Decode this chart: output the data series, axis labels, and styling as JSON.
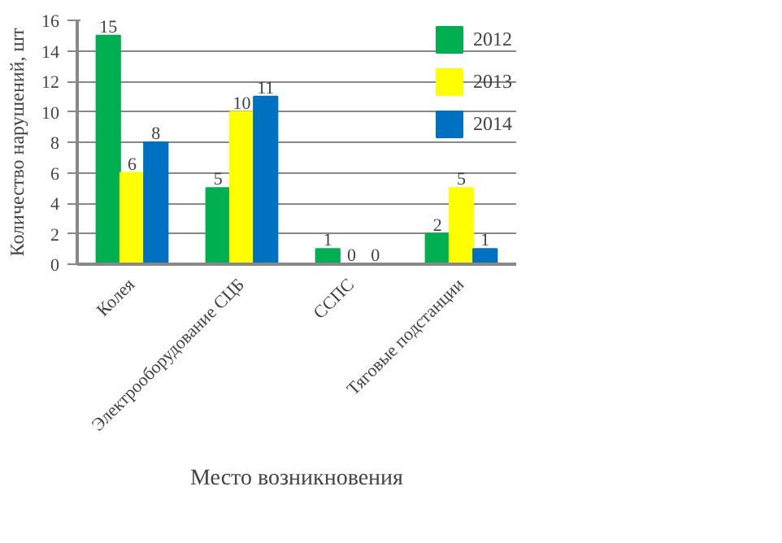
{
  "chart_data": {
    "type": "bar",
    "xlabel": "Место возникновения",
    "ylabel": "Количество нарушений, шт",
    "categories": [
      "Колея",
      "Электрооборудование СЦБ",
      "ССПС",
      "Тяговые подстанции"
    ],
    "series": [
      {
        "name": "2012",
        "color": "#00b050",
        "values": [
          15,
          5,
          1,
          2
        ]
      },
      {
        "name": "2013",
        "color": "#ffff00",
        "values": [
          6,
          10,
          0,
          5
        ]
      },
      {
        "name": "2014",
        "color": "#0070c0",
        "values": [
          8,
          11,
          0,
          1
        ]
      }
    ],
    "ylim": [
      0,
      16
    ],
    "yticks": [
      0,
      2,
      4,
      6,
      8,
      10,
      12,
      14,
      16
    ],
    "grid": "y",
    "legend": "top right",
    "data_labels": true
  }
}
